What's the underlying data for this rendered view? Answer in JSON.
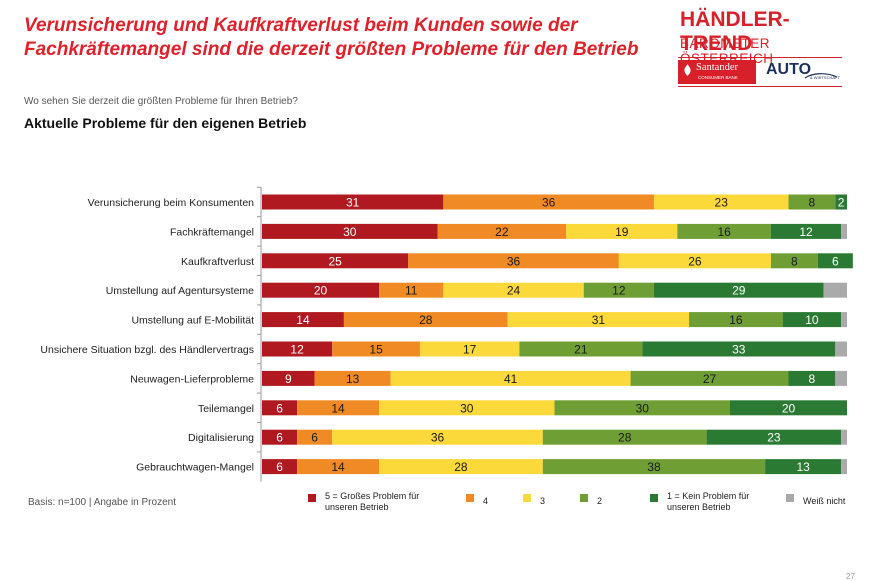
{
  "header": {
    "title": "Verunsicherung und Kaufkraftverlust beim Kunden sowie der Fachkräftemangel sind die derzeit größten Probleme für den Betrieb",
    "question": "Wo sehen Sie derzeit die größten Probleme für Ihren Betrieb?",
    "subtitle": "Aktuelle Probleme für den eigenen Betrieb"
  },
  "logo": {
    "line1": "HÄNDLER-TREND",
    "line2": "BAROMETER ÖSTERREICH",
    "santander": "Santander",
    "santander_sub": "CONSUMER BANK",
    "auto": "AUTO",
    "auto_sub": "& WIRTSCHAFT"
  },
  "footer": {
    "basis": "Basis: n=100 | Angabe in Prozent",
    "page": "27"
  },
  "colors": {
    "s5": "#b0191f",
    "s4": "#f08a24",
    "s3": "#fcd93a",
    "s2": "#6f9e35",
    "s1": "#2a7a33",
    "dk": "#aaaaaa"
  },
  "chart_data": {
    "type": "bar",
    "orientation": "horizontal",
    "stacked": true,
    "categories": [
      "Verunsicherung beim Konsumenten",
      "Fachkräftemangel",
      "Kaufkraftverlust",
      "Umstellung auf Agentursysteme",
      "Umstellung auf E-Mobilität",
      "Unsichere Situation bzgl. des Händlervertrags",
      "Neuwagen-Lieferprobleme",
      "Teilemangel",
      "Digitalisierung",
      "Gebrauchtwagen-Mangel"
    ],
    "series": [
      {
        "name": "5 = Großes Problem für unseren Betrieb",
        "color": "#b0191f",
        "values": [
          31,
          30,
          25,
          20,
          14,
          12,
          9,
          6,
          6,
          6
        ]
      },
      {
        "name": "4",
        "color": "#f08a24",
        "values": [
          36,
          22,
          36,
          11,
          28,
          15,
          13,
          14,
          6,
          14
        ]
      },
      {
        "name": "3",
        "color": "#fcd93a",
        "values": [
          23,
          19,
          26,
          24,
          31,
          17,
          41,
          30,
          36,
          28
        ]
      },
      {
        "name": "2",
        "color": "#6f9e35",
        "values": [
          8,
          16,
          8,
          12,
          16,
          21,
          27,
          30,
          28,
          38
        ]
      },
      {
        "name": "1 = Kein Problem für unseren Betrieb",
        "color": "#2a7a33",
        "values": [
          2,
          12,
          6,
          29,
          10,
          33,
          8,
          20,
          23,
          13
        ]
      },
      {
        "name": "Weiß nicht",
        "color": "#aaaaaa",
        "values": [
          0,
          1,
          0,
          4,
          1,
          2,
          2,
          0,
          1,
          1
        ]
      }
    ],
    "xlim": [
      0,
      100
    ],
    "unit": "Prozent",
    "legend_position": "bottom"
  }
}
